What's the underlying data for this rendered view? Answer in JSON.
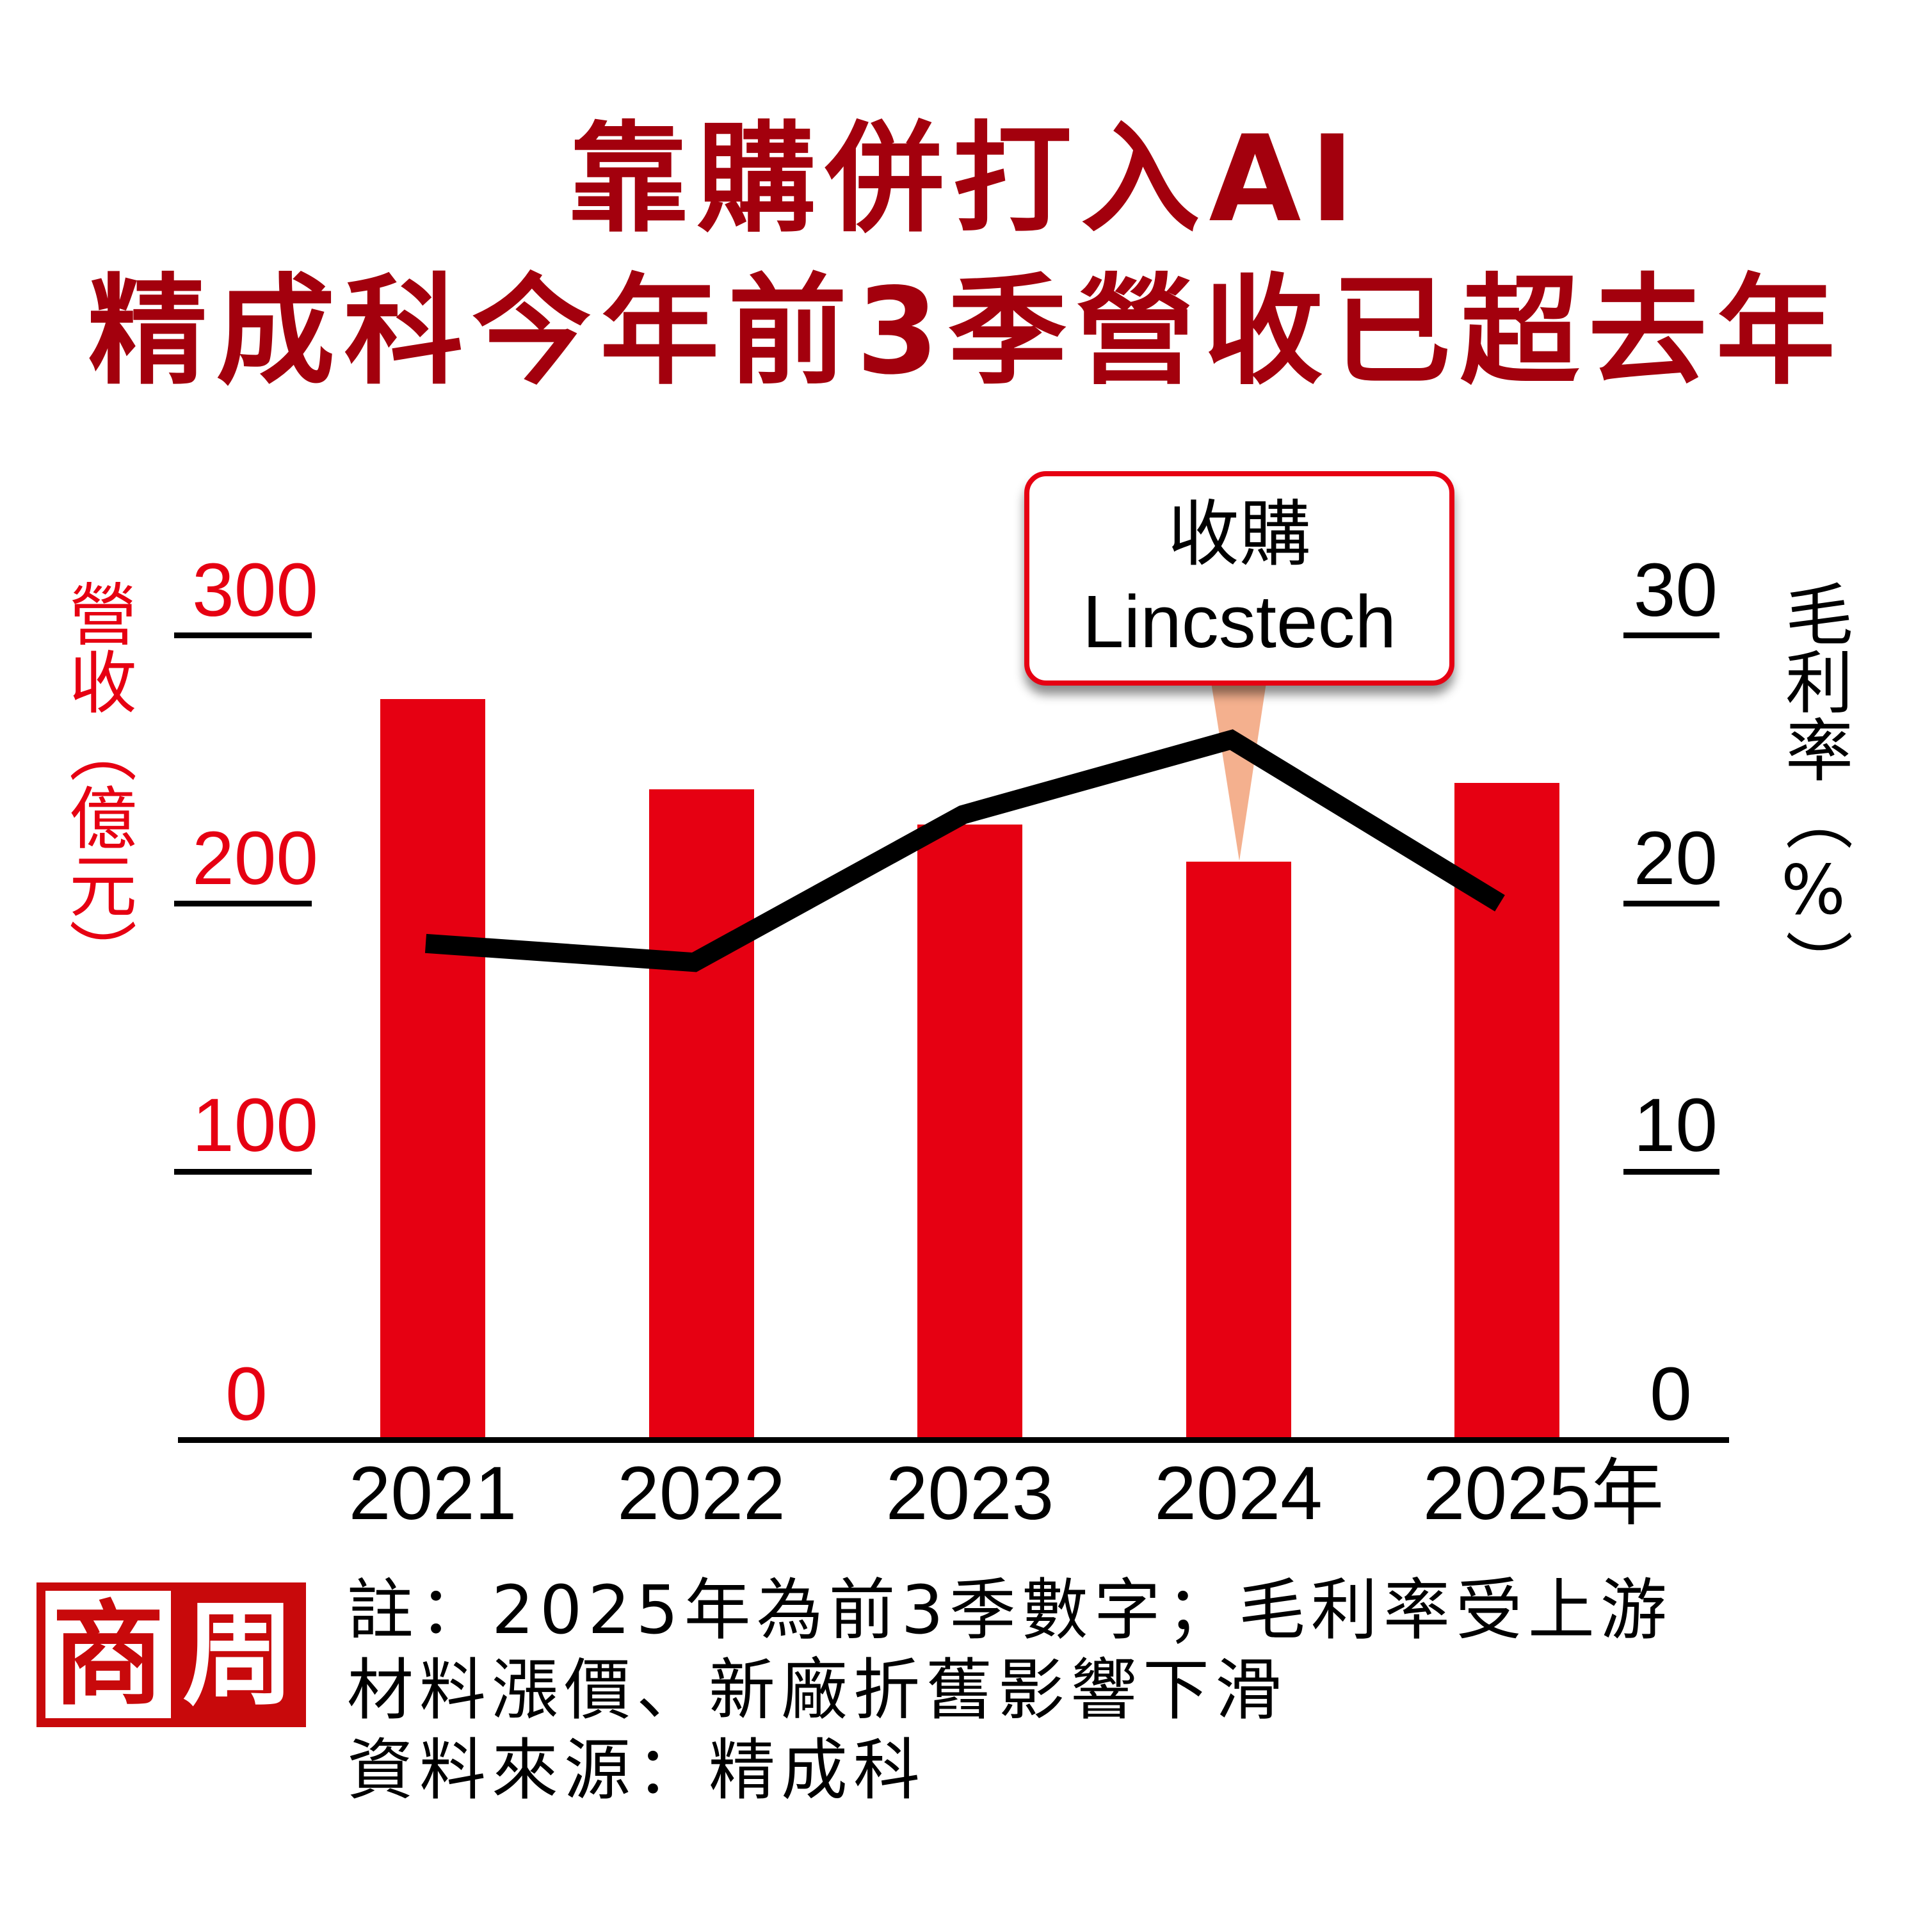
{
  "title": {
    "line1": "靠購併打入AI",
    "line2": "精成科今年前3季營收已超去年"
  },
  "axes": {
    "left": {
      "title": "營收（億元）",
      "ticks": [
        "300",
        "200",
        "100",
        "0"
      ]
    },
    "right": {
      "title": "毛利率（%）",
      "ticks": [
        "30",
        "20",
        "10",
        "0"
      ]
    }
  },
  "callout": {
    "line1": "收購",
    "line2": "Lincstech"
  },
  "footer": {
    "logo": {
      "char1": "商",
      "char2": "周"
    },
    "note_lines": [
      "註：2025年為前3季數字；毛利率受上游",
      "材料漲價、新廠折舊影響下滑",
      "資料來源：精成科"
    ]
  },
  "colors": {
    "title": "#a3000d",
    "bar": "#e60012",
    "line": "#000000",
    "callout_border": "#e60012",
    "callout_pointer": "#f4b08e",
    "logo": "#c8090b"
  },
  "chart_data": {
    "type": "bar",
    "title": "靠購併打入AI 精成科今年前3季營收已超去年",
    "categories": [
      "2021",
      "2022",
      "2023",
      "2024",
      "2025"
    ],
    "x_last_suffix": "年",
    "xlabel": "",
    "ylabel": "營收（億元）",
    "y2label": "毛利率（%）",
    "ylim": [
      0,
      300
    ],
    "y2lim": [
      0,
      30
    ],
    "yticks": [
      0,
      100,
      200,
      300
    ],
    "y2ticks": [
      0,
      10,
      20,
      30
    ],
    "grid": false,
    "legend": null,
    "series": [
      {
        "name": "營收",
        "unit": "億元",
        "type": "bar",
        "axis": "left",
        "values": [
          276.2,
          242.5,
          229.4,
          215.5,
          244.9
        ]
      },
      {
        "name": "毛利率",
        "unit": "%",
        "type": "line",
        "axis": "right",
        "values": [
          18.5,
          17.8,
          23.3,
          26.1,
          20.0
        ]
      }
    ],
    "annotations": [
      {
        "text": "收購 Lincstech",
        "x": "2024"
      }
    ],
    "notes": [
      "註：2025年為前3季數字；毛利率受上游材料漲價、新廠折舊影響下滑",
      "資料來源：精成科"
    ]
  }
}
